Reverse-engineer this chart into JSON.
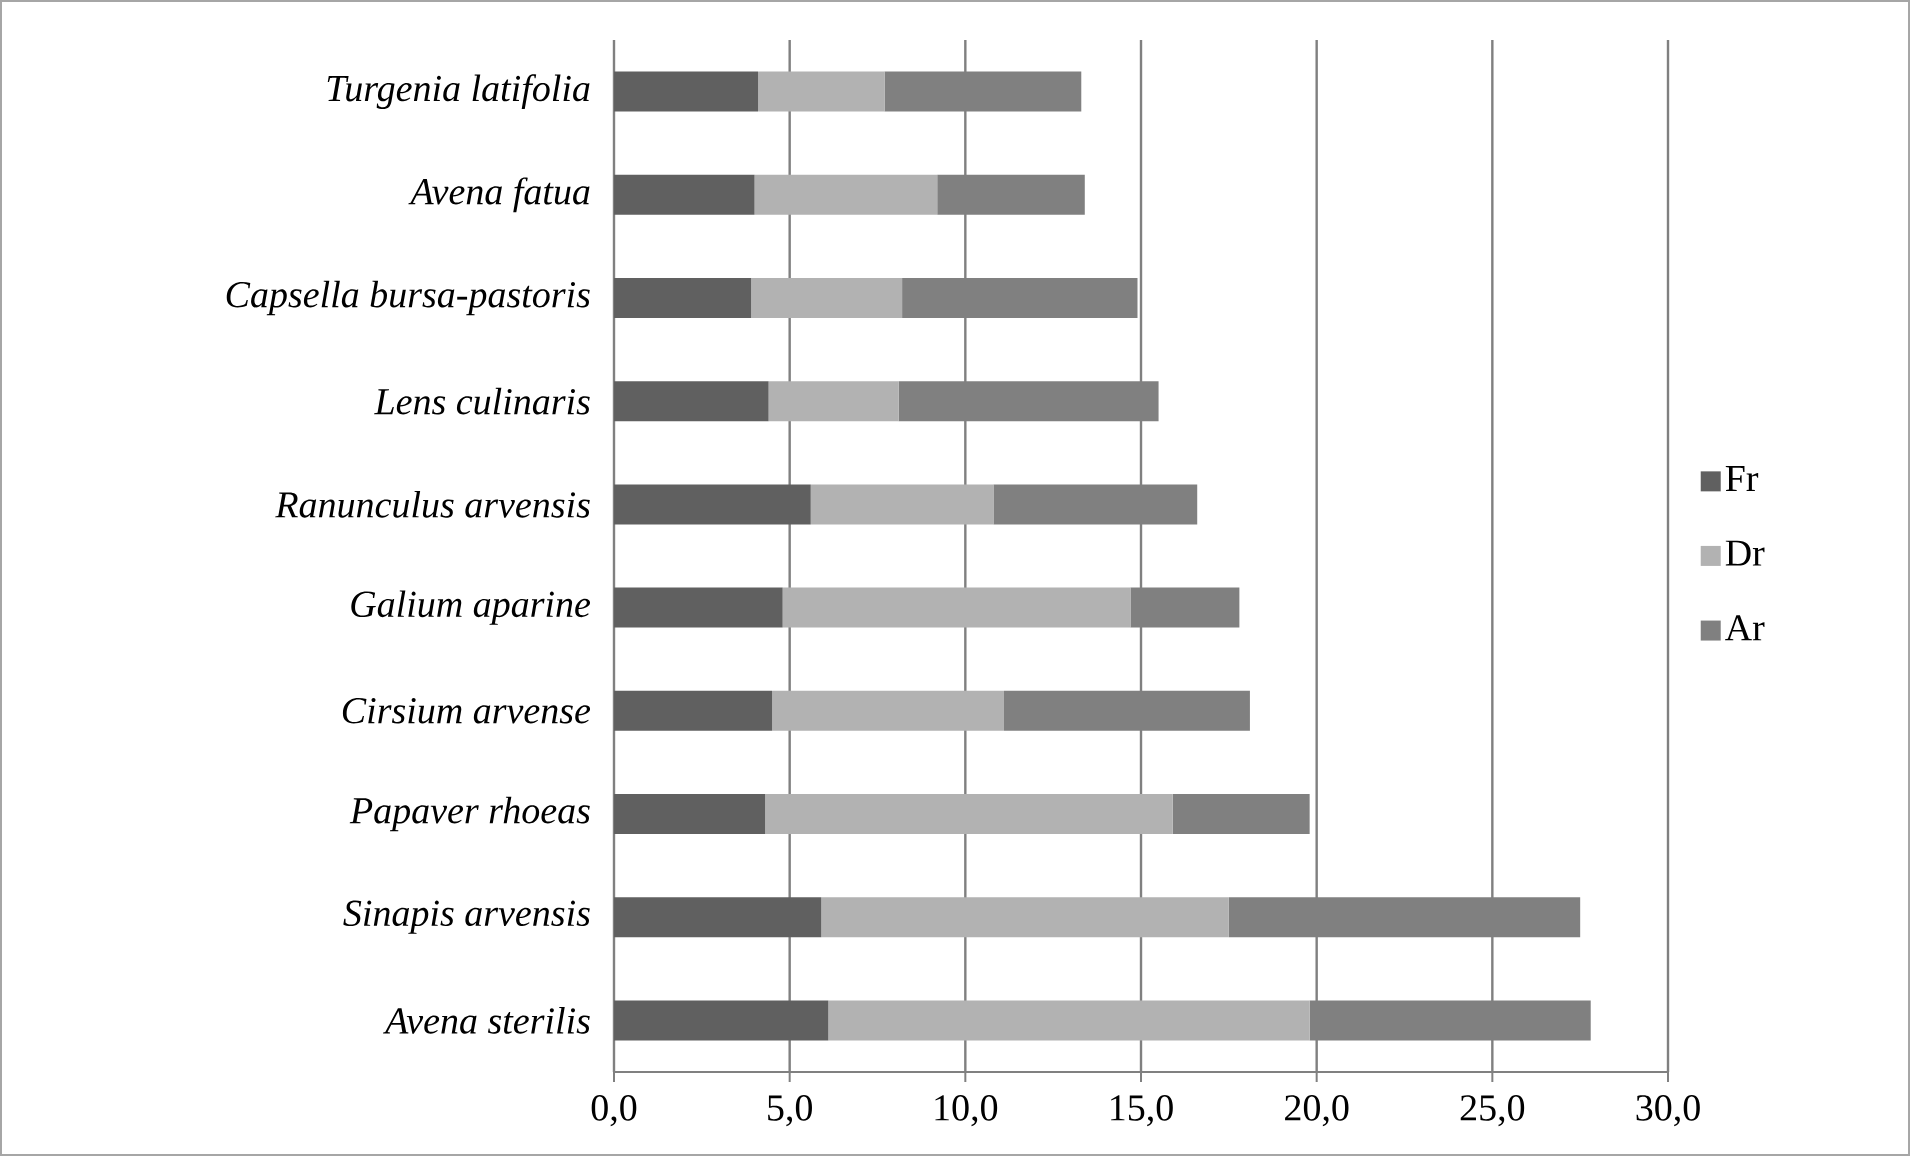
{
  "chart_data": {
    "type": "bar",
    "orientation": "horizontal",
    "stacked": true,
    "categories": [
      "Turgenia latifolia",
      "Avena fatua",
      "Capsella bursa-pastoris",
      "Lens culinaris",
      "Ranunculus arvensis",
      "Galium aparine",
      "Cirsium arvense",
      "Papaver rhoeas",
      "Sinapis arvensis",
      "Avena sterilis"
    ],
    "series": [
      {
        "name": "Fr",
        "color": "#606060",
        "values": [
          4.1,
          4.0,
          3.9,
          4.4,
          5.6,
          4.8,
          4.5,
          4.3,
          5.9,
          6.1
        ]
      },
      {
        "name": "Dr",
        "color": "#b2b2b2",
        "values": [
          3.6,
          5.2,
          4.3,
          3.7,
          5.2,
          9.9,
          6.6,
          11.6,
          11.6,
          13.7
        ]
      },
      {
        "name": "Ar",
        "color": "#808080",
        "values": [
          5.6,
          4.2,
          6.7,
          7.4,
          5.8,
          3.1,
          7.0,
          3.9,
          10.0,
          8.0
        ]
      }
    ],
    "xlim": [
      0,
      30
    ],
    "xticks": [
      {
        "value": 0,
        "label": "0,0"
      },
      {
        "value": 5,
        "label": "5,0"
      },
      {
        "value": 10,
        "label": "10,0"
      },
      {
        "value": 15,
        "label": "15,0"
      },
      {
        "value": 20,
        "label": "20,0"
      },
      {
        "value": 25,
        "label": "25,0"
      },
      {
        "value": 30,
        "label": "30,0"
      }
    ],
    "grid": "x",
    "legend": "right"
  }
}
